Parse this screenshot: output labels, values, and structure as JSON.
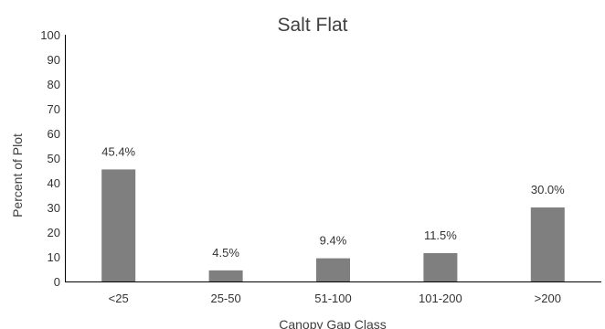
{
  "chart_data": {
    "type": "bar",
    "title": "Salt Flat",
    "xlabel": "Canopy Gap Class",
    "ylabel": "Percent of Plot",
    "categories": [
      "<25",
      "25-50",
      "51-100",
      "101-200",
      ">200"
    ],
    "values": [
      45.4,
      4.5,
      9.4,
      11.5,
      30.0
    ],
    "data_labels": [
      "45.4%",
      "4.5%",
      "9.4%",
      "11.5%",
      "30.0%"
    ],
    "ylim": [
      0,
      100
    ],
    "yticks": [
      0,
      10,
      20,
      30,
      40,
      50,
      60,
      70,
      80,
      90,
      100
    ],
    "grid": false,
    "legend": "none",
    "bar_color": "#7f7f7f"
  }
}
